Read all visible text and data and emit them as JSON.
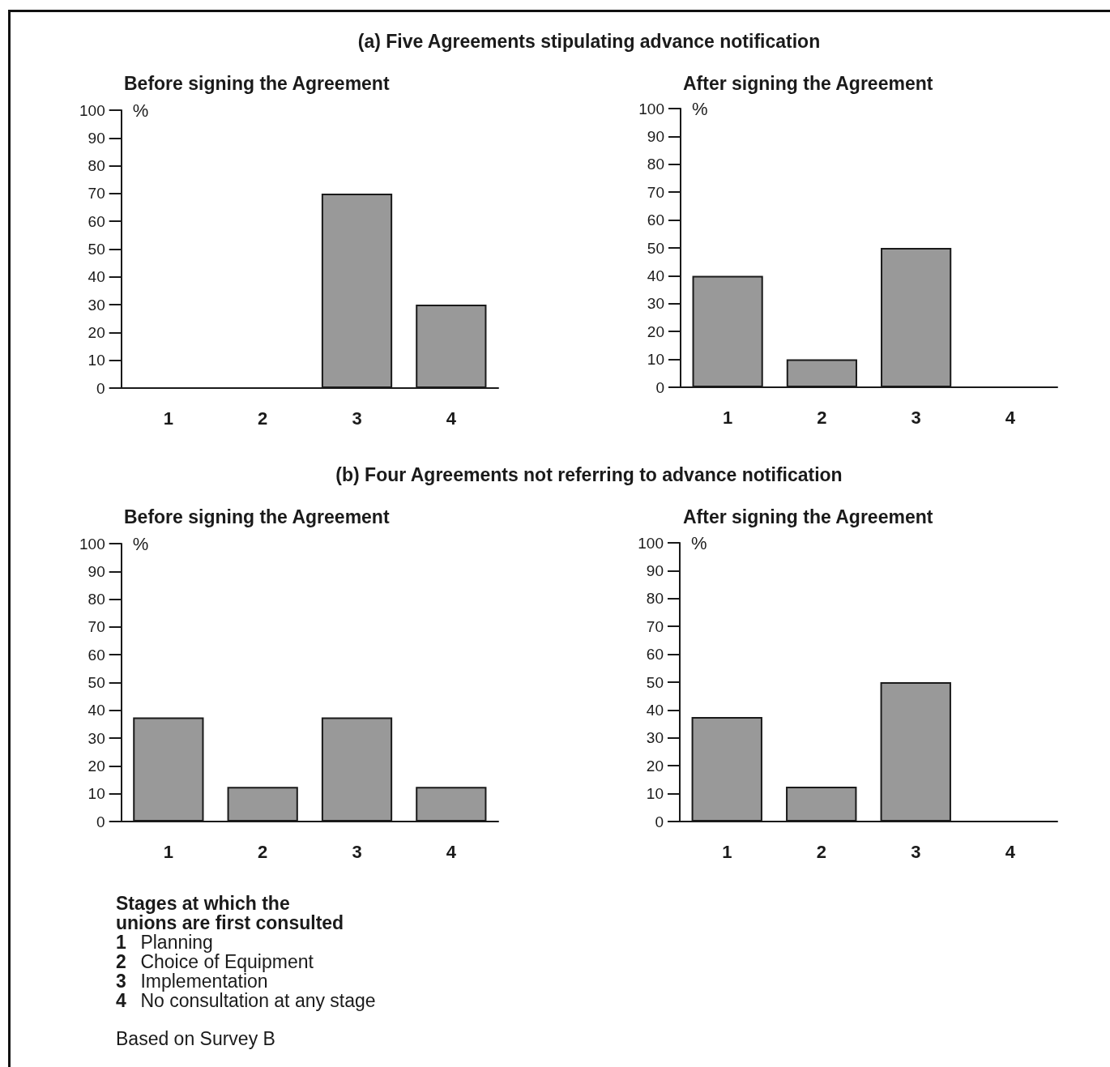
{
  "chart_data": [
    {
      "type": "bar",
      "title": "(a) Five Agreements stipulating advance notification",
      "subtitle": "Before signing the Agreement",
      "ylabel": "%",
      "categories": [
        "1",
        "2",
        "3",
        "4"
      ],
      "values": [
        0,
        0,
        70,
        30
      ],
      "colors": [
        "#1a1a1a",
        "#1a1a1a",
        "#999999",
        "#999999"
      ],
      "ylim": [
        0,
        100
      ],
      "yticks": [
        0,
        10,
        20,
        30,
        40,
        50,
        60,
        70,
        80,
        90,
        100
      ]
    },
    {
      "type": "bar",
      "subtitle": "After signing the Agreement",
      "ylabel": "%",
      "categories": [
        "1",
        "2",
        "3",
        "4"
      ],
      "values": [
        40,
        10,
        50,
        0
      ],
      "colors": [
        "#999999",
        "#999999",
        "#999999",
        "#1a1a1a"
      ],
      "ylim": [
        0,
        100
      ],
      "yticks": [
        0,
        10,
        20,
        30,
        40,
        50,
        60,
        70,
        80,
        90,
        100
      ]
    },
    {
      "type": "bar",
      "title": "(b) Four Agreements not referring to advance notification",
      "subtitle": "Before signing the Agreement",
      "ylabel": "%",
      "categories": [
        "1",
        "2",
        "3",
        "4"
      ],
      "values": [
        37.5,
        12.5,
        37.5,
        12.5
      ],
      "color": "#999999",
      "ylim": [
        0,
        100
      ],
      "yticks": [
        0,
        10,
        20,
        30,
        40,
        50,
        60,
        70,
        80,
        90,
        100
      ],
      "annotations": [
        "Stages at which the unions are first consulted",
        "1 Planning",
        "2 Choice of Equipment",
        "3 Implementation",
        "4 No consultation at any stage",
        "Based on Survey B"
      ]
    },
    {
      "type": "bar",
      "subtitle": "After signing the Agreement",
      "ylabel": "%",
      "categories": [
        "1",
        "2",
        "3",
        "4"
      ],
      "values": [
        37.5,
        12.5,
        50,
        0
      ],
      "colors": [
        "#999999",
        "#999999",
        "#999999",
        "#1a1a1a"
      ],
      "ylim": [
        0,
        100
      ],
      "yticks": [
        0,
        10,
        20,
        30,
        40,
        50,
        60,
        70,
        80,
        90,
        100
      ]
    }
  ]
}
